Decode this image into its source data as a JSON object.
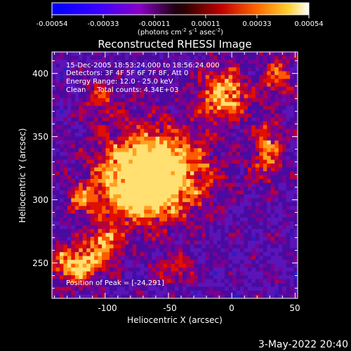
{
  "colorbar": {
    "tick_labels": [
      "-0.00054",
      "-0.00033",
      "-0.00011",
      "0.00011",
      "0.00033",
      "0.00054"
    ],
    "unit_label": "(photons cm",
    "unit_exp1": "-2",
    "unit_mid": " s",
    "unit_exp2": "-1",
    "unit_mid2": " asec",
    "unit_exp3": "-2",
    "unit_end": ")",
    "range": [
      -0.00054,
      0.00054
    ]
  },
  "plot": {
    "title": "Reconstructed RHESSI Image",
    "annotations": [
      "15-Dec-2005 18:53:24.000 to 18:56:24.000",
      "Detectors: 3F 4F 5F 6F 7F 8F, Att 0",
      "Energy Range: 12.0 - 25.0 keV",
      "Clean     Total counts: 4.34E+03"
    ],
    "peak_label": "Position of Peak = [-24,291]",
    "x_label": "Heliocentric X (arcsec)",
    "y_label": "Heliocentric Y (arcsec)",
    "x_ticks": [
      "-100",
      "-50",
      "0",
      "50"
    ],
    "y_ticks": [
      "250",
      "300",
      "350",
      "400"
    ],
    "xlim": [
      -142,
      52
    ],
    "ylim": [
      222,
      417
    ],
    "peak": [
      -24,
      291
    ]
  },
  "footer": {
    "timestamp": "3-May-2022 20:40"
  },
  "colors": {
    "background": "#000000",
    "text": "#ffffff"
  }
}
